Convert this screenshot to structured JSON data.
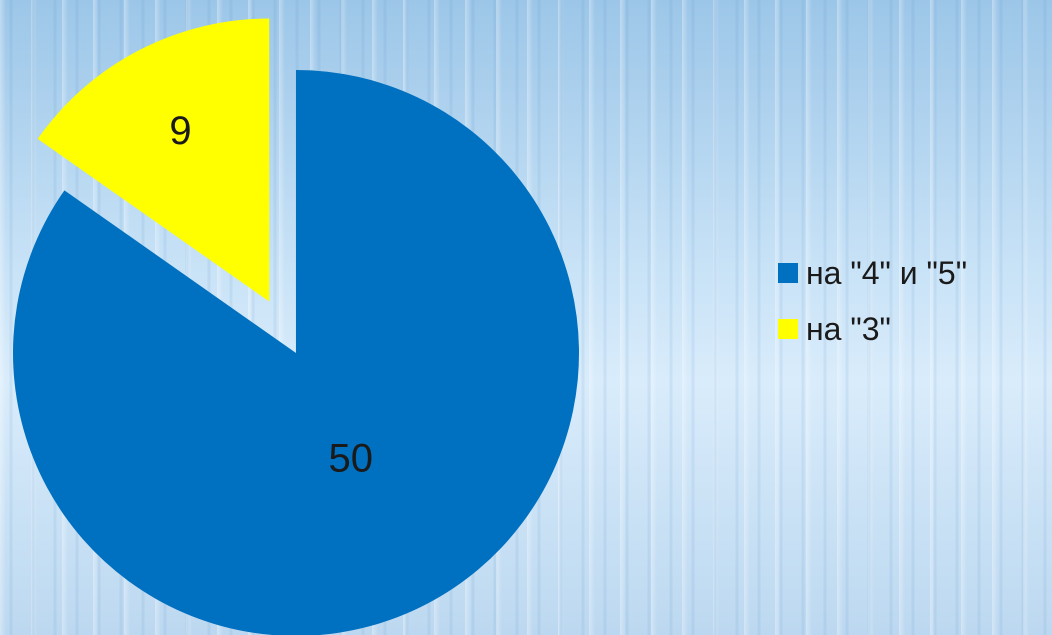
{
  "chart_data": {
    "type": "pie",
    "categories": [
      "на \"4\" и \"5\"",
      "на \"3\""
    ],
    "values": [
      50,
      9
    ],
    "colors": [
      "#0070c0",
      "#ffff00"
    ],
    "exploded": [
      false,
      true
    ],
    "data_labels": [
      "50",
      "9"
    ],
    "legend_position": "right"
  },
  "legend": {
    "items": [
      {
        "label": "на \"4\" и \"5\"",
        "color": "#0070c0"
      },
      {
        "label": "на \"3\"",
        "color": "#ffff00"
      }
    ]
  }
}
